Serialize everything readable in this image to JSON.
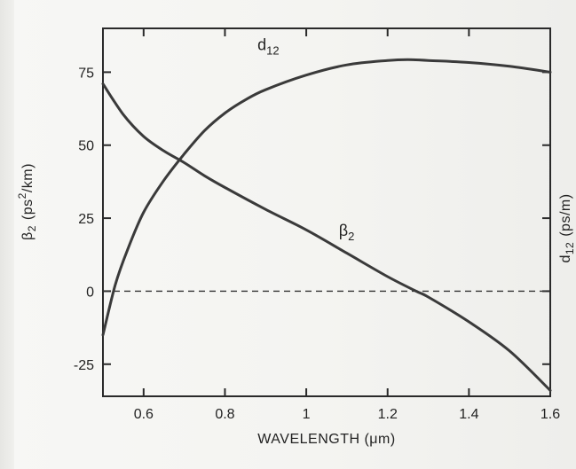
{
  "chart_data": {
    "type": "line",
    "x_axis": {
      "label": "WAVELENGTH (μm)",
      "range": [
        0.5,
        1.6
      ],
      "ticks": [
        {
          "value": 0.6,
          "label": "0.6"
        },
        {
          "value": 0.8,
          "label": "0.8"
        },
        {
          "value": 1.0,
          "label": "1"
        },
        {
          "value": 1.2,
          "label": "1.2"
        },
        {
          "value": 1.4,
          "label": "1.4"
        },
        {
          "value": 1.6,
          "label": "1.6"
        }
      ]
    },
    "y_axis_left": {
      "label_base": "β",
      "label_sub": "2",
      "label_open": "(ps",
      "label_sup": "2",
      "label_close": "/km)",
      "range": [
        -36,
        90
      ],
      "ticks": [
        {
          "value": 75,
          "label": "75"
        },
        {
          "value": 50,
          "label": "50"
        },
        {
          "value": 25,
          "label": "25"
        },
        {
          "value": 0,
          "label": "0"
        },
        {
          "value": -25,
          "label": "-25"
        }
      ]
    },
    "y_axis_right": {
      "label_base": "d",
      "label_sub": "12",
      "label_rest": "(ps/m)"
    },
    "reference_line": {
      "y": 0,
      "style": "dashed"
    },
    "series": [
      {
        "name_base": "d",
        "name_sub": "12",
        "points": [
          [
            0.5,
            -15
          ],
          [
            0.53,
            2
          ],
          [
            0.56,
            14
          ],
          [
            0.6,
            27
          ],
          [
            0.65,
            38
          ],
          [
            0.7,
            47
          ],
          [
            0.75,
            55
          ],
          [
            0.8,
            61
          ],
          [
            0.85,
            65.5
          ],
          [
            0.9,
            69
          ],
          [
            1.0,
            74
          ],
          [
            1.1,
            77.5
          ],
          [
            1.2,
            79
          ],
          [
            1.25,
            79.3
          ],
          [
            1.3,
            79
          ],
          [
            1.4,
            78.3
          ],
          [
            1.5,
            77
          ],
          [
            1.6,
            75
          ]
        ]
      },
      {
        "name_base": "β",
        "name_sub": "2",
        "points": [
          [
            0.5,
            71
          ],
          [
            0.55,
            60.5
          ],
          [
            0.6,
            53
          ],
          [
            0.65,
            48
          ],
          [
            0.7,
            44
          ],
          [
            0.75,
            39.5
          ],
          [
            0.8,
            35.5
          ],
          [
            0.9,
            28
          ],
          [
            1.0,
            21
          ],
          [
            1.1,
            13
          ],
          [
            1.2,
            5
          ],
          [
            1.27,
            0
          ],
          [
            1.3,
            -2
          ],
          [
            1.4,
            -10.5
          ],
          [
            1.5,
            -20.5
          ],
          [
            1.6,
            -34
          ]
        ]
      }
    ],
    "grid": false,
    "legend": "none"
  }
}
